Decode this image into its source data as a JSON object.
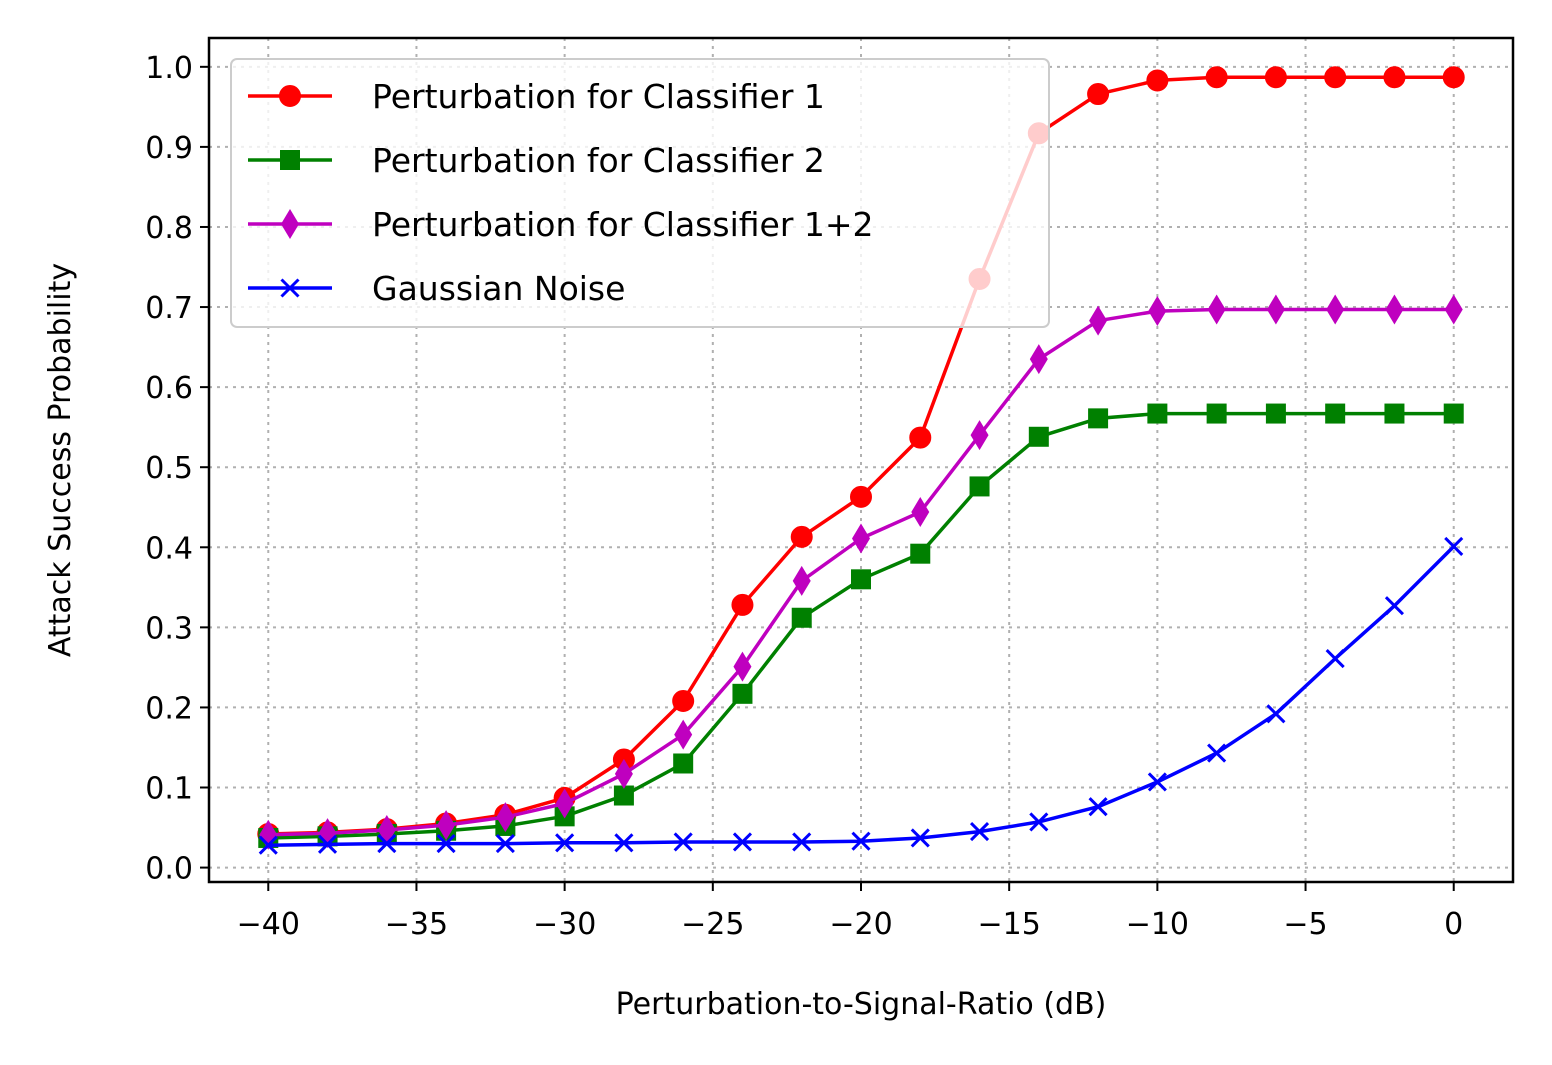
{
  "chart_data": {
    "type": "line",
    "title": "",
    "xlabel": "Perturbation-to-Signal-Ratio (dB)",
    "ylabel": "Attack Success Probability",
    "xlim": [
      -42,
      2
    ],
    "ylim": [
      -0.018,
      1.036
    ],
    "xticks": [
      -40,
      -35,
      -30,
      -25,
      -20,
      -15,
      -10,
      -5,
      0
    ],
    "xtick_labels": [
      "−40",
      "−35",
      "−30",
      "−25",
      "−20",
      "−15",
      "−10",
      "−5",
      "0"
    ],
    "yticks": [
      0.0,
      0.1,
      0.2,
      0.3,
      0.4,
      0.5,
      0.6,
      0.7,
      0.8,
      0.9,
      1.0
    ],
    "ytick_labels": [
      "0.0",
      "0.1",
      "0.2",
      "0.3",
      "0.4",
      "0.5",
      "0.6",
      "0.7",
      "0.8",
      "0.9",
      "1.0"
    ],
    "grid": true,
    "legend_position": "top-left",
    "x": [
      -40,
      -38,
      -36,
      -34,
      -32,
      -30,
      -28,
      -26,
      -24,
      -22,
      -20,
      -18,
      -16,
      -14,
      -12,
      -10,
      -8,
      -6,
      -4,
      -2,
      0
    ],
    "series": [
      {
        "name": "Perturbation for Classifier 1",
        "color": "#ff0000",
        "marker": "circle",
        "values": [
          0.042,
          0.044,
          0.048,
          0.055,
          0.066,
          0.087,
          0.135,
          0.208,
          0.328,
          0.413,
          0.463,
          0.537,
          0.735,
          0.917,
          0.966,
          0.983,
          0.987,
          0.987,
          0.987,
          0.987,
          0.987
        ]
      },
      {
        "name": "Perturbation for Classifier 2",
        "color": "#008000",
        "marker": "square",
        "values": [
          0.037,
          0.039,
          0.042,
          0.046,
          0.052,
          0.064,
          0.09,
          0.13,
          0.217,
          0.312,
          0.36,
          0.392,
          0.476,
          0.538,
          0.561,
          0.567,
          0.567,
          0.567,
          0.567,
          0.567,
          0.567
        ]
      },
      {
        "name": "Perturbation for Classifier 1+2",
        "color": "#bf00bf",
        "marker": "thin_diamond",
        "values": [
          0.041,
          0.043,
          0.047,
          0.053,
          0.063,
          0.08,
          0.117,
          0.166,
          0.251,
          0.358,
          0.411,
          0.444,
          0.54,
          0.635,
          0.683,
          0.695,
          0.697,
          0.697,
          0.697,
          0.697,
          0.697
        ]
      },
      {
        "name": "Gaussian Noise",
        "color": "#0000ff",
        "marker": "x",
        "values": [
          0.028,
          0.029,
          0.03,
          0.03,
          0.03,
          0.031,
          0.031,
          0.032,
          0.032,
          0.032,
          0.033,
          0.037,
          0.045,
          0.057,
          0.076,
          0.107,
          0.143,
          0.192,
          0.261,
          0.327,
          0.401
        ]
      }
    ]
  }
}
